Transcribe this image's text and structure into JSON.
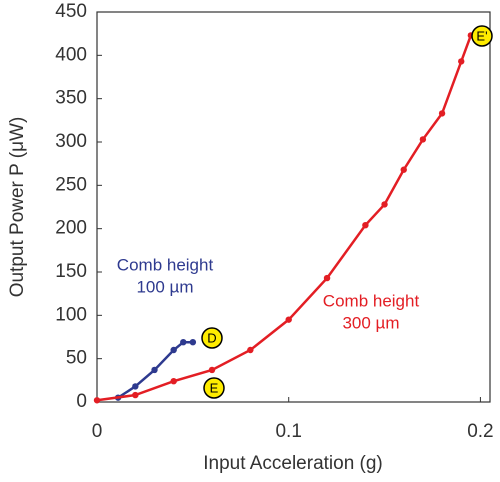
{
  "chart_data": {
    "type": "line",
    "xlabel": "Input Acceleration (g)",
    "ylabel": "Output Power P (μW)",
    "xlim": [
      0,
      0.205
    ],
    "ylim": [
      0,
      450
    ],
    "xticks": [
      0,
      0.1,
      0.2
    ],
    "yticks": [
      0,
      50,
      100,
      150,
      200,
      250,
      300,
      350,
      400,
      450
    ],
    "series": [
      {
        "color": "#2e3a8f",
        "x": [
          0.011,
          0.02,
          0.03,
          0.04,
          0.045,
          0.05
        ],
        "values": [
          5,
          18,
          37,
          60,
          69,
          69
        ]
      },
      {
        "color": "#e31e24",
        "x": [
          0,
          0.02,
          0.04,
          0.06,
          0.08,
          0.1,
          0.12,
          0.14,
          0.15,
          0.16,
          0.17,
          0.18,
          0.19,
          0.195
        ],
        "values": [
          2,
          8,
          24,
          37,
          60,
          95,
          143,
          204,
          228,
          268,
          303,
          333,
          393,
          423
        ]
      }
    ],
    "annotations": [
      [
        "Comb height",
        "100 µm"
      ],
      [
        "Comb height",
        "300 µm"
      ]
    ],
    "point_labels": [
      "D",
      "E",
      "E'"
    ]
  }
}
